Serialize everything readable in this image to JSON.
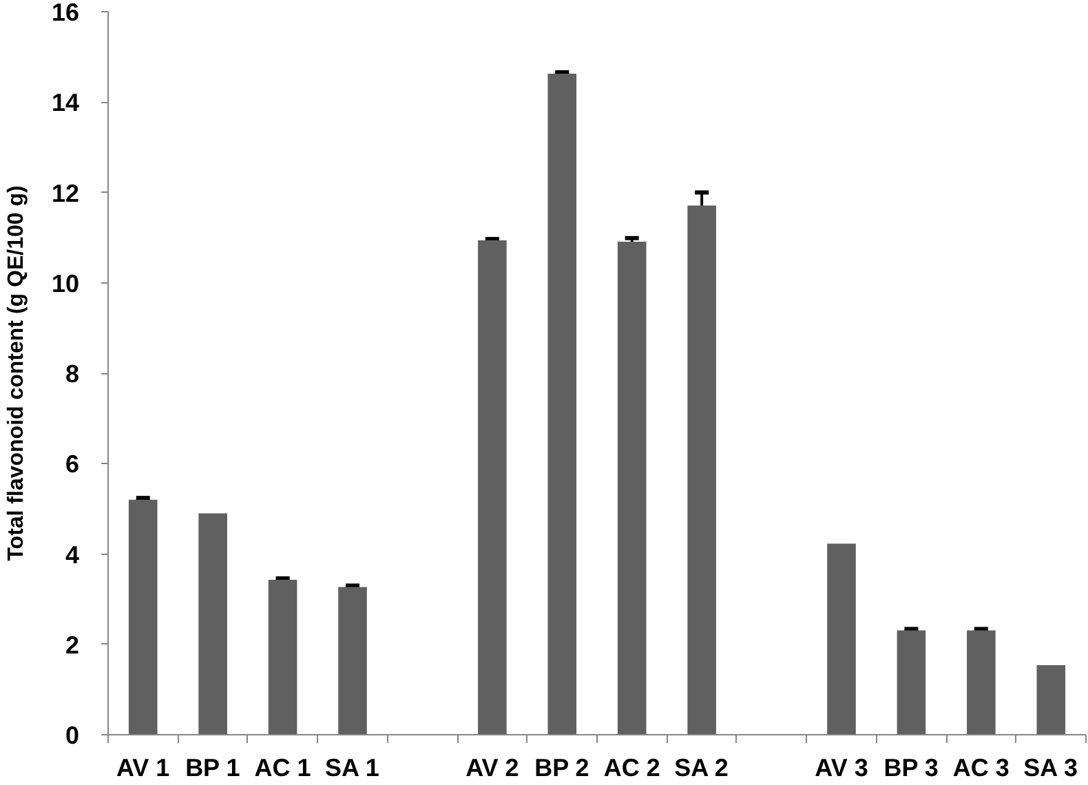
{
  "chart_data": {
    "type": "bar",
    "ylabel": "Total flavonoid content (g QE/100 g)",
    "categories": [
      "AV 1",
      "BP 1",
      "AC 1",
      "SA 1",
      null,
      "AV 2",
      "BP 2",
      "AC 2",
      "SA 2",
      null,
      "AV 3",
      "BP 3",
      "AC 3",
      "SA 3"
    ],
    "values": [
      5.2,
      4.9,
      3.43,
      3.27,
      null,
      10.94,
      14.63,
      10.91,
      11.71,
      null,
      4.23,
      2.31,
      2.31,
      1.54
    ],
    "errors": [
      0.04,
      null,
      0.03,
      0.03,
      null,
      0.03,
      0.03,
      0.08,
      0.29,
      null,
      null,
      0.03,
      0.03,
      null
    ],
    "color": "#606060",
    "ylim": [
      0,
      16
    ],
    "yticks": [
      0,
      2,
      4,
      6,
      8,
      10,
      12,
      14,
      16
    ]
  }
}
